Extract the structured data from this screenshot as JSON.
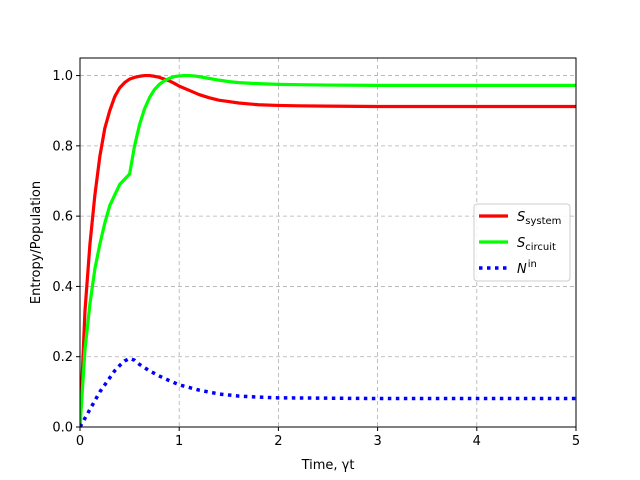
{
  "chart_data": {
    "type": "line",
    "title": "",
    "xlabel": "Time, γt",
    "ylabel": "Entropy/Population",
    "xlim": [
      0,
      5
    ],
    "ylim": [
      0,
      1.05
    ],
    "xticks": [
      0,
      1,
      2,
      3,
      4,
      5
    ],
    "yticks": [
      0.0,
      0.2,
      0.4,
      0.6,
      0.8,
      1.0
    ],
    "xtick_labels": [
      "0",
      "1",
      "2",
      "3",
      "4",
      "5"
    ],
    "ytick_labels": [
      "0.0",
      "0.2",
      "0.4",
      "0.6",
      "0.8",
      "1.0"
    ],
    "grid": true,
    "legend_position": "center-right",
    "series": [
      {
        "name": "S_system",
        "legend": {
          "base": "S",
          "sub": "system",
          "sup": ""
        },
        "color": "#ff0000",
        "style": "solid",
        "x": [
          0,
          0.05,
          0.1,
          0.15,
          0.2,
          0.25,
          0.3,
          0.35,
          0.4,
          0.45,
          0.5,
          0.55,
          0.6,
          0.65,
          0.7,
          0.75,
          0.8,
          0.85,
          0.9,
          0.95,
          1.0,
          1.1,
          1.2,
          1.3,
          1.4,
          1.5,
          1.6,
          1.8,
          2.0,
          2.2,
          2.5,
          3.0,
          3.5,
          4.0,
          4.5,
          5.0
        ],
        "y": [
          0,
          0.33,
          0.52,
          0.66,
          0.77,
          0.85,
          0.9,
          0.94,
          0.965,
          0.98,
          0.99,
          0.995,
          0.998,
          1.0,
          1.0,
          0.998,
          0.995,
          0.99,
          0.985,
          0.978,
          0.97,
          0.958,
          0.946,
          0.937,
          0.93,
          0.926,
          0.922,
          0.917,
          0.915,
          0.914,
          0.913,
          0.912,
          0.912,
          0.912,
          0.912,
          0.912
        ]
      },
      {
        "name": "S_circuit",
        "legend": {
          "base": "S",
          "sub": "circuit",
          "sup": ""
        },
        "color": "#00ff00",
        "style": "solid",
        "x": [
          0,
          0.05,
          0.1,
          0.15,
          0.2,
          0.25,
          0.3,
          0.35,
          0.4,
          0.45,
          0.5,
          0.55,
          0.6,
          0.65,
          0.7,
          0.75,
          0.8,
          0.85,
          0.9,
          0.95,
          1.0,
          1.05,
          1.1,
          1.15,
          1.2,
          1.3,
          1.4,
          1.5,
          1.6,
          1.8,
          2.0,
          2.2,
          2.5,
          3.0,
          3.5,
          4.0,
          4.5,
          5.0
        ],
        "y": [
          0,
          0.22,
          0.35,
          0.45,
          0.52,
          0.58,
          0.63,
          0.66,
          0.69,
          0.705,
          0.72,
          0.8,
          0.86,
          0.905,
          0.937,
          0.96,
          0.975,
          0.985,
          0.992,
          0.997,
          0.999,
          1.0,
          1.0,
          0.999,
          0.997,
          0.992,
          0.987,
          0.983,
          0.98,
          0.977,
          0.975,
          0.974,
          0.973,
          0.972,
          0.972,
          0.972,
          0.972,
          0.972
        ]
      },
      {
        "name": "N^in",
        "legend": {
          "base": "N",
          "sub": "",
          "sup": "in"
        },
        "color": "#0000ff",
        "style": "dotted",
        "x": [
          0,
          0.05,
          0.1,
          0.15,
          0.2,
          0.25,
          0.3,
          0.35,
          0.4,
          0.45,
          0.5,
          0.55,
          0.6,
          0.7,
          0.8,
          0.9,
          1.0,
          1.2,
          1.4,
          1.6,
          1.8,
          2.0,
          2.5,
          3.0,
          3.5,
          4.0,
          4.5,
          5.0
        ],
        "y": [
          0,
          0.025,
          0.05,
          0.075,
          0.1,
          0.12,
          0.14,
          0.16,
          0.175,
          0.188,
          0.195,
          0.19,
          0.178,
          0.16,
          0.145,
          0.132,
          0.12,
          0.105,
          0.094,
          0.088,
          0.085,
          0.083,
          0.082,
          0.081,
          0.081,
          0.081,
          0.081,
          0.081
        ]
      }
    ]
  }
}
